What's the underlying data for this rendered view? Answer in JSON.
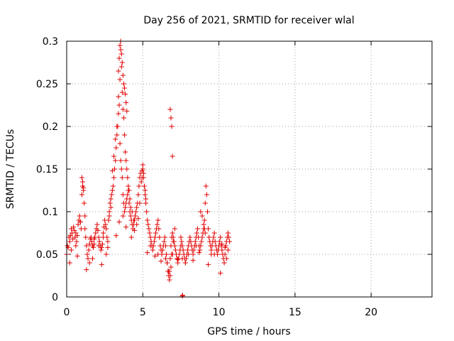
{
  "chart_data": {
    "type": "scatter",
    "title": "Day 256 of 2021, SRMTID for receiver wlal",
    "xlabel": "GPS time / hours",
    "ylabel": "SRMTID / TECUs",
    "xlim": [
      0,
      24
    ],
    "ylim": [
      0,
      0.3
    ],
    "xticks": [
      0,
      5,
      10,
      15,
      20
    ],
    "xtick_labels": [
      "0",
      "5",
      "10",
      "15",
      "20"
    ],
    "yticks": [
      0,
      0.05,
      0.1,
      0.15,
      0.2,
      0.25,
      0.3
    ],
    "ytick_labels": [
      "0",
      "0.05",
      "0.1",
      "0.15",
      "0.2",
      "0.25",
      "0.3"
    ],
    "grid": true,
    "marker": "+",
    "color": "#e00000",
    "series": [
      {
        "x": [
          0.0,
          0.05,
          0.1,
          0.15,
          0.2,
          0.25,
          0.3,
          0.35,
          0.4,
          0.45,
          0.5,
          0.55,
          0.6,
          0.65,
          0.7,
          0.75,
          0.8,
          0.85,
          0.9,
          0.95,
          1.0,
          1.05,
          1.1,
          1.15,
          1.2,
          1.25,
          1.3,
          1.35,
          1.4,
          1.45,
          1.5,
          1.55,
          1.6,
          1.65,
          1.7,
          1.75,
          1.8,
          1.85,
          1.9,
          1.95,
          2.0,
          2.05,
          2.1,
          2.15,
          2.2,
          2.25,
          2.3,
          2.35,
          2.4,
          2.45,
          2.5,
          2.55,
          2.6,
          2.65,
          2.7,
          2.75,
          2.8,
          2.85,
          2.9,
          2.95,
          3.0,
          3.05,
          3.1,
          3.15,
          3.2,
          3.25,
          3.3,
          3.35,
          3.4,
          3.45,
          3.5,
          3.55,
          3.6,
          3.65,
          3.7,
          3.75,
          3.8,
          3.85,
          3.9,
          3.95,
          4.0,
          4.05,
          4.1,
          4.15,
          4.2,
          4.25,
          4.3,
          4.35,
          4.4,
          4.45,
          4.5,
          4.55,
          4.6,
          4.65,
          4.7,
          4.75,
          4.8,
          4.85,
          4.9,
          4.95,
          5.0,
          5.05,
          5.1,
          5.15,
          5.2,
          5.25,
          5.3,
          5.35,
          5.4,
          5.45,
          5.5,
          5.55,
          5.6,
          5.65,
          5.7,
          5.75,
          5.8,
          5.85,
          5.9,
          5.95,
          6.0,
          6.05,
          6.1,
          6.15,
          6.2,
          6.25,
          6.3,
          6.35,
          6.4,
          6.45,
          6.5,
          6.55,
          6.6,
          6.65,
          6.7,
          6.75,
          6.8,
          6.85,
          6.9,
          6.95,
          7.0,
          7.05,
          7.1,
          7.15,
          7.2,
          7.25,
          7.3,
          7.35,
          7.4,
          7.45,
          7.5,
          7.55,
          7.6,
          7.65,
          7.7,
          7.75,
          7.8,
          7.85,
          7.9,
          7.95,
          8.0,
          8.05,
          8.1,
          8.15,
          8.2,
          8.25,
          8.3,
          8.35,
          8.4,
          8.45,
          8.5,
          8.55,
          8.6,
          8.65,
          8.7,
          8.75,
          8.8,
          8.85,
          8.9,
          8.95,
          9.0,
          9.05,
          9.1,
          9.15,
          9.2,
          9.25,
          9.3,
          9.35,
          9.4,
          9.45,
          9.5,
          9.55,
          9.6,
          9.65,
          9.7,
          9.75,
          9.8,
          9.85,
          9.9,
          9.95,
          10.0,
          10.05,
          10.1,
          10.15,
          10.2,
          10.25,
          10.3,
          10.35,
          10.4,
          10.45,
          10.5,
          10.55,
          10.6,
          10.65,
          10.7,
          0.3,
          0.6,
          0.9,
          1.0,
          1.05,
          1.1,
          1.2,
          1.5,
          1.8,
          2.1,
          2.4,
          2.7,
          2.8,
          2.9,
          3.0,
          3.1,
          3.2,
          3.3,
          3.4,
          3.5,
          3.55,
          3.6,
          3.65,
          3.7,
          3.75,
          3.8,
          3.85,
          3.9,
          3.95,
          4.0,
          4.05,
          4.1,
          4.15,
          4.2,
          4.3,
          4.4,
          4.5,
          4.6,
          4.7,
          4.8,
          4.95,
          5.0,
          5.05,
          5.1,
          5.15,
          5.2,
          5.5,
          6.0,
          6.5,
          6.6,
          6.7,
          6.75,
          6.8,
          6.85,
          6.9,
          7.0,
          7.1,
          7.5,
          7.6,
          8.0,
          8.5,
          8.8,
          8.9,
          9.0,
          9.05,
          9.1,
          9.5,
          10.0,
          10.2,
          10.4,
          10.6,
          0.2,
          0.7,
          1.3,
          1.7,
          2.3,
          2.6,
          3.25,
          3.45,
          3.7,
          3.9,
          4.25,
          4.45,
          5.3,
          5.8,
          6.2,
          6.95,
          7.3,
          7.8,
          8.3,
          8.7,
          9.3,
          9.7,
          10.1,
          10.5,
          3.4,
          3.45,
          3.5,
          3.55,
          3.6,
          3.65,
          3.7,
          3.75,
          3.8,
          3.85,
          3.9,
          3.95,
          6.8,
          6.85,
          6.9,
          6.95,
          7.6,
          7.62
        ],
        "y": [
          0.05,
          0.06,
          0.058,
          0.07,
          0.065,
          0.072,
          0.08,
          0.075,
          0.068,
          0.082,
          0.078,
          0.07,
          0.06,
          0.065,
          0.072,
          0.085,
          0.09,
          0.095,
          0.088,
          0.08,
          0.12,
          0.13,
          0.125,
          0.11,
          0.095,
          0.07,
          0.06,
          0.05,
          0.045,
          0.055,
          0.062,
          0.068,
          0.07,
          0.065,
          0.06,
          0.058,
          0.062,
          0.07,
          0.075,
          0.08,
          0.085,
          0.078,
          0.07,
          0.065,
          0.06,
          0.055,
          0.058,
          0.062,
          0.07,
          0.082,
          0.09,
          0.085,
          0.08,
          0.07,
          0.065,
          0.09,
          0.1,
          0.11,
          0.115,
          0.12,
          0.125,
          0.13,
          0.14,
          0.15,
          0.16,
          0.175,
          0.19,
          0.2,
          0.215,
          0.225,
          0.18,
          0.16,
          0.15,
          0.14,
          0.12,
          0.11,
          0.1,
          0.105,
          0.11,
          0.115,
          0.12,
          0.125,
          0.11,
          0.1,
          0.095,
          0.09,
          0.085,
          0.08,
          0.085,
          0.09,
          0.095,
          0.1,
          0.105,
          0.11,
          0.12,
          0.13,
          0.14,
          0.145,
          0.135,
          0.14,
          0.15,
          0.145,
          0.13,
          0.12,
          0.11,
          0.1,
          0.09,
          0.085,
          0.08,
          0.075,
          0.07,
          0.065,
          0.06,
          0.055,
          0.06,
          0.065,
          0.07,
          0.075,
          0.08,
          0.085,
          0.09,
          0.08,
          0.07,
          0.06,
          0.055,
          0.05,
          0.055,
          0.06,
          0.065,
          0.07,
          0.06,
          0.05,
          0.04,
          0.03,
          0.025,
          0.03,
          0.045,
          0.06,
          0.07,
          0.075,
          0.07,
          0.065,
          0.06,
          0.055,
          0.05,
          0.045,
          0.04,
          0.045,
          0.05,
          0.055,
          0.06,
          0.065,
          0.06,
          0.055,
          0.05,
          0.045,
          0.04,
          0.045,
          0.05,
          0.055,
          0.06,
          0.065,
          0.07,
          0.065,
          0.06,
          0.055,
          0.05,
          0.055,
          0.06,
          0.065,
          0.07,
          0.075,
          0.08,
          0.07,
          0.06,
          0.055,
          0.06,
          0.065,
          0.07,
          0.075,
          0.08,
          0.09,
          0.11,
          0.13,
          0.12,
          0.1,
          0.08,
          0.07,
          0.065,
          0.06,
          0.055,
          0.06,
          0.065,
          0.07,
          0.075,
          0.065,
          0.06,
          0.055,
          0.05,
          0.055,
          0.06,
          0.065,
          0.07,
          0.06,
          0.055,
          0.05,
          0.045,
          0.04,
          0.05,
          0.06,
          0.065,
          0.07,
          0.075,
          0.07,
          0.065,
          0.055,
          0.075,
          0.088,
          0.14,
          0.135,
          0.128,
          0.08,
          0.04,
          0.068,
          0.06,
          0.075,
          0.058,
          0.095,
          0.105,
          0.148,
          0.165,
          0.185,
          0.2,
          0.235,
          0.255,
          0.29,
          0.27,
          0.24,
          0.22,
          0.21,
          0.19,
          0.17,
          0.16,
          0.15,
          0.14,
          0.13,
          0.125,
          0.115,
          0.105,
          0.1,
          0.09,
          0.095,
          0.085,
          0.092,
          0.11,
          0.148,
          0.155,
          0.14,
          0.13,
          0.125,
          0.115,
          0.06,
          0.05,
          0.045,
          0.04,
          0.03,
          0.02,
          0.025,
          0.035,
          0.05,
          0.065,
          0.08,
          0.07,
          0.045,
          0.05,
          0.06,
          0.1,
          0.095,
          0.085,
          0.08,
          0.075,
          0.05,
          0.06,
          0.062,
          0.058,
          0.055,
          0.04,
          0.048,
          0.032,
          0.045,
          0.038,
          0.05,
          0.072,
          0.088,
          0.095,
          0.082,
          0.07,
          0.078,
          0.052,
          0.048,
          0.042,
          0.05,
          0.044,
          0.04,
          0.043,
          0.052,
          0.038,
          0.05,
          0.028,
          0.045,
          0.265,
          0.28,
          0.295,
          0.3,
          0.285,
          0.275,
          0.26,
          0.25,
          0.245,
          0.238,
          0.228,
          0.218,
          0.22,
          0.21,
          0.2,
          0.165,
          0.001,
          0.002
        ]
      }
    ]
  }
}
